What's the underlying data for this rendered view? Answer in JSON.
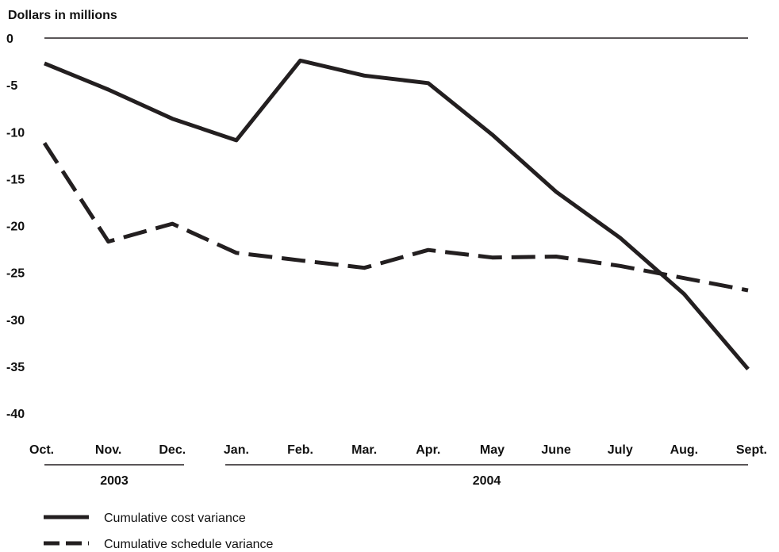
{
  "chart_data": {
    "type": "line",
    "ylabel": "Dollars in millions",
    "ylim": [
      -40,
      0
    ],
    "yticks": [
      "0",
      "-5",
      "-10",
      "-15",
      "-20",
      "-25",
      "-30",
      "-35",
      "-40"
    ],
    "categories": [
      "Oct.",
      "Nov.",
      "Dec.",
      "Jan.",
      "Feb.",
      "Mar.",
      "Apr.",
      "May",
      "June",
      "July",
      "Aug.",
      "Sept."
    ],
    "year_groups": [
      {
        "label": "2003",
        "categories": [
          "Oct.",
          "Nov.",
          "Dec."
        ]
      },
      {
        "label": "2004",
        "categories": [
          "Jan.",
          "Feb.",
          "Mar.",
          "Apr.",
          "May",
          "June",
          "July",
          "Aug.",
          "Sept."
        ]
      }
    ],
    "series": [
      {
        "name": "Cumulative cost variance",
        "style": "solid",
        "values": [
          -2.7,
          -5.5,
          -8.6,
          -10.9,
          -2.4,
          -4.0,
          -4.8,
          -10.3,
          -16.4,
          -21.3,
          -27.3,
          -35.3
        ]
      },
      {
        "name": "Cumulative schedule variance",
        "style": "dashed",
        "values": [
          -11.2,
          -21.7,
          -19.8,
          -22.9,
          -23.7,
          -24.5,
          -22.6,
          -23.4,
          -23.3,
          -24.3,
          -25.6,
          -26.9
        ]
      }
    ],
    "colors": {
      "line": "#231f20",
      "axis": "#231f20"
    },
    "grid": false,
    "legend_position": "bottom-left"
  }
}
